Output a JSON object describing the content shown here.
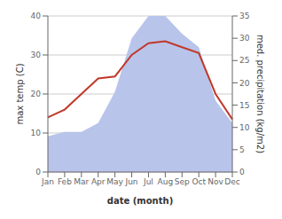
{
  "chart_data": {
    "type": "line",
    "xlabel": "date (month)",
    "ylabel": "max temp (C)",
    "y2label": "med. precipitation (kg/m2)",
    "categories": [
      "Jan",
      "Feb",
      "Mar",
      "Apr",
      "May",
      "Jun",
      "Jul",
      "Aug",
      "Sep",
      "Oct",
      "Nov",
      "Dec"
    ],
    "series": [
      {
        "type": "area",
        "color": "#b8c4ea",
        "axis": "y2",
        "values": [
          8,
          9,
          9,
          11,
          18,
          30,
          35,
          35,
          31,
          28,
          16,
          11
        ]
      },
      {
        "type": "line",
        "color": "#c0392b",
        "values": [
          14,
          16,
          20,
          24,
          24.5,
          30,
          33,
          33.5,
          32,
          30.5,
          20,
          13.5
        ]
      }
    ],
    "ylim": [
      0,
      40
    ],
    "yticks": [
      0,
      10,
      20,
      30,
      40
    ],
    "y2lim": [
      0,
      35
    ],
    "y2ticks": [
      0,
      5,
      10,
      15,
      20,
      25,
      30,
      35
    ],
    "grid": true
  }
}
